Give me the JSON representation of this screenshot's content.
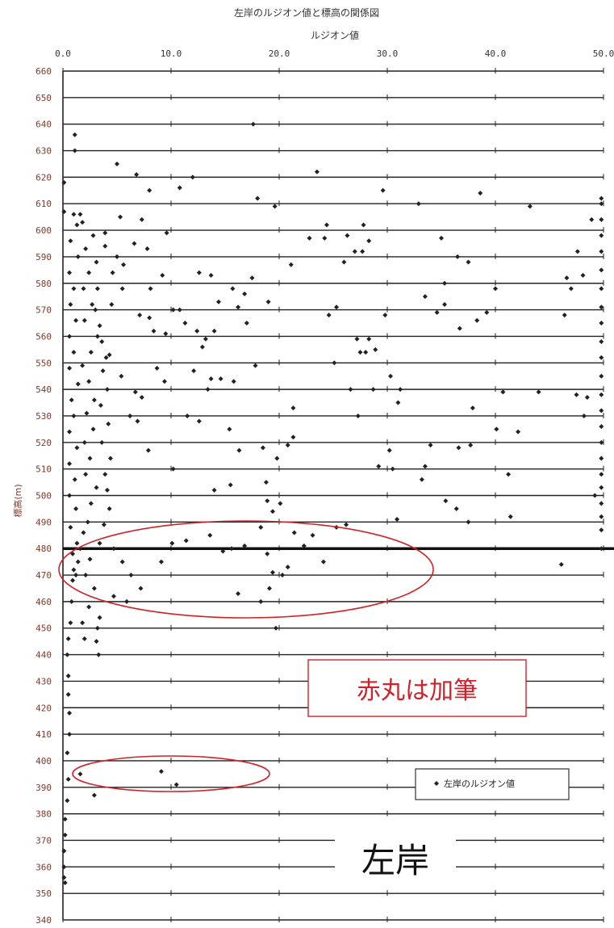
{
  "chart_data": {
    "type": "scatter",
    "title": "左岸のルジオン値と標高の関係図",
    "xlabel": "ルジオン値",
    "ylabel": "標高(m)",
    "xlim": [
      0,
      50
    ],
    "ylim": [
      340,
      660
    ],
    "x_ticks": [
      "0.0",
      "10.0",
      "20.0",
      "30.0",
      "40.0",
      "50.0"
    ],
    "y_ticks": [
      "660",
      "650",
      "640",
      "630",
      "620",
      "610",
      "600",
      "590",
      "580",
      "570",
      "560",
      "550",
      "540",
      "530",
      "520",
      "510",
      "500",
      "490",
      "480",
      "470",
      "460",
      "450",
      "440",
      "430",
      "420",
      "410",
      "400",
      "390",
      "380",
      "370",
      "360",
      "350",
      "340"
    ],
    "x_axis_position": "top",
    "grid": "horizontal",
    "reference_line_elevation": 480,
    "legend": {
      "label": "左岸のルジオン値",
      "placement": "bottom-right"
    },
    "series": [
      {
        "name": "左岸のルジオン値",
        "points": [
          [
            1.1,
            636
          ],
          [
            1.1,
            630
          ],
          [
            5,
            625
          ],
          [
            6.8,
            621
          ],
          [
            12,
            620
          ],
          [
            10.8,
            616
          ],
          [
            8,
            615
          ],
          [
            23.5,
            622
          ],
          [
            17.6,
            640
          ],
          [
            18,
            612
          ],
          [
            19.6,
            609
          ],
          [
            29.6,
            615
          ],
          [
            32.9,
            610
          ],
          [
            38.6,
            614
          ],
          [
            43.2,
            609
          ],
          [
            0.1,
            618
          ],
          [
            0.1,
            607
          ],
          [
            1,
            606
          ],
          [
            1.6,
            606
          ],
          [
            5.3,
            605
          ],
          [
            7.3,
            604
          ],
          [
            3.9,
            599
          ],
          [
            9.6,
            599
          ],
          [
            6.6,
            595
          ],
          [
            7.8,
            593
          ],
          [
            5,
            590
          ],
          [
            5.6,
            587
          ],
          [
            4.6,
            584
          ],
          [
            9.2,
            583
          ],
          [
            12.6,
            584
          ],
          [
            13.7,
            583
          ],
          [
            15.7,
            578
          ],
          [
            16.8,
            576
          ],
          [
            17.5,
            582
          ],
          [
            21.1,
            587
          ],
          [
            22.8,
            597
          ],
          [
            24.2,
            597
          ],
          [
            24.4,
            602
          ],
          [
            26.3,
            598
          ],
          [
            27.8,
            602
          ],
          [
            28.3,
            596
          ],
          [
            26,
            588
          ],
          [
            27,
            592
          ],
          [
            27.7,
            592
          ],
          [
            35,
            597
          ],
          [
            35.3,
            580
          ],
          [
            36.5,
            590
          ],
          [
            37.5,
            588
          ],
          [
            40,
            578
          ],
          [
            46.6,
            582
          ],
          [
            47.6,
            592
          ],
          [
            48.1,
            583
          ],
          [
            48.9,
            604
          ],
          [
            3.2,
            578
          ],
          [
            5.5,
            578
          ],
          [
            8.1,
            578
          ],
          [
            10.8,
            570
          ],
          [
            11.3,
            565
          ],
          [
            12.4,
            562
          ],
          [
            13.2,
            559
          ],
          [
            14.4,
            573
          ],
          [
            14,
            562
          ],
          [
            17,
            565
          ],
          [
            16.2,
            571
          ],
          [
            19,
            573
          ],
          [
            24.6,
            568
          ],
          [
            25.3,
            571
          ],
          [
            27.2,
            559
          ],
          [
            28.3,
            559
          ],
          [
            29.8,
            568
          ],
          [
            33.5,
            575
          ],
          [
            34.6,
            569
          ],
          [
            35.3,
            572
          ],
          [
            36.7,
            563
          ],
          [
            38.3,
            566
          ],
          [
            39.2,
            569
          ],
          [
            46.4,
            568
          ],
          [
            47,
            578
          ],
          [
            3,
            570
          ],
          [
            4.5,
            572
          ],
          [
            7.1,
            568
          ],
          [
            8,
            567
          ],
          [
            8.4,
            562
          ],
          [
            9.5,
            561
          ],
          [
            10.2,
            570
          ],
          [
            12.9,
            556
          ],
          [
            13.4,
            540
          ],
          [
            14.6,
            544
          ],
          [
            15.8,
            543
          ],
          [
            17.8,
            549
          ],
          [
            25.1,
            550
          ],
          [
            27.5,
            554
          ],
          [
            28,
            554
          ],
          [
            28.9,
            555
          ],
          [
            30.3,
            545
          ],
          [
            31,
            535
          ],
          [
            4,
            552
          ],
          [
            5.4,
            545
          ],
          [
            6.7,
            539
          ],
          [
            7.3,
            537
          ],
          [
            8.7,
            548
          ],
          [
            9.4,
            543
          ],
          [
            12.1,
            547
          ],
          [
            13.7,
            544
          ],
          [
            11.5,
            530
          ],
          [
            12.6,
            528
          ],
          [
            15.4,
            525
          ],
          [
            16.3,
            517
          ],
          [
            18.5,
            518
          ],
          [
            19.8,
            514
          ],
          [
            21.3,
            533
          ],
          [
            26.6,
            540
          ],
          [
            27.3,
            530
          ],
          [
            28.7,
            540
          ],
          [
            30.2,
            517
          ],
          [
            31.2,
            540
          ],
          [
            33.2,
            506
          ],
          [
            33.5,
            511
          ],
          [
            34,
            519
          ],
          [
            35.4,
            498
          ],
          [
            36.6,
            518
          ],
          [
            37.9,
            533
          ],
          [
            40.1,
            525
          ],
          [
            41.2,
            508
          ],
          [
            41.4,
            492
          ],
          [
            42.1,
            524
          ],
          [
            40.7,
            539
          ],
          [
            44,
            539
          ],
          [
            47.5,
            538
          ],
          [
            48.2,
            530
          ],
          [
            48.5,
            537
          ],
          [
            49.2,
            500
          ],
          [
            6.2,
            530
          ],
          [
            6.9,
            528
          ],
          [
            7.9,
            517
          ],
          [
            10.2,
            510
          ],
          [
            14,
            502
          ],
          [
            15.5,
            504
          ],
          [
            18.8,
            505
          ],
          [
            18.9,
            498
          ],
          [
            19.4,
            494
          ],
          [
            20.1,
            497
          ],
          [
            20.8,
            519
          ],
          [
            21.3,
            522
          ],
          [
            29.2,
            511
          ],
          [
            30.5,
            510
          ],
          [
            30.9,
            491
          ],
          [
            36.4,
            495
          ],
          [
            37.5,
            490
          ],
          [
            37.7,
            519
          ],
          [
            4.7,
            480
          ],
          [
            5.5,
            475
          ],
          [
            6.3,
            470
          ],
          [
            7.2,
            465
          ],
          [
            9.1,
            475
          ],
          [
            10.1,
            482
          ],
          [
            11.4,
            483
          ],
          [
            13.6,
            485
          ],
          [
            14.8,
            479
          ],
          [
            15.6,
            480
          ],
          [
            16.8,
            481
          ],
          [
            18.3,
            488
          ],
          [
            18.9,
            478
          ],
          [
            19.4,
            471
          ],
          [
            20.3,
            470
          ],
          [
            20.8,
            473
          ],
          [
            22.3,
            481
          ],
          [
            23.1,
            485
          ],
          [
            24.1,
            475
          ],
          [
            25.3,
            488
          ],
          [
            26.2,
            489
          ],
          [
            21.4,
            486
          ],
          [
            16.2,
            463
          ],
          [
            18.3,
            460
          ],
          [
            19.1,
            465
          ],
          [
            19.7,
            450
          ],
          [
            5.9,
            460
          ],
          [
            4.7,
            462
          ],
          [
            3.4,
            454
          ],
          [
            3.2,
            450
          ],
          [
            3.1,
            445
          ],
          [
            3.3,
            440
          ],
          [
            46.1,
            474
          ],
          [
            9.1,
            396
          ],
          [
            10.5,
            391
          ],
          [
            1.6,
            395
          ],
          [
            2.9,
            387
          ],
          [
            0.5,
            393
          ],
          [
            0.4,
            385
          ],
          [
            0.2,
            378
          ],
          [
            0.2,
            372
          ],
          [
            0.1,
            366
          ],
          [
            0.1,
            360
          ],
          [
            0.1,
            356
          ],
          [
            0.2,
            354
          ],
          [
            0.4,
            403
          ],
          [
            0.6,
            410
          ],
          [
            0.6,
            418
          ],
          [
            0.5,
            425
          ],
          [
            0.5,
            432
          ],
          [
            0.4,
            440
          ],
          [
            0.5,
            446
          ],
          [
            0.7,
            452
          ],
          [
            0.8,
            460
          ],
          [
            0.9,
            468
          ],
          [
            1,
            472
          ],
          [
            1.2,
            470
          ],
          [
            1.4,
            475
          ],
          [
            0.9,
            478
          ],
          [
            1.3,
            482
          ],
          [
            0.7,
            488
          ],
          [
            1.2,
            495
          ],
          [
            0.6,
            500
          ],
          [
            1.1,
            506
          ],
          [
            0.6,
            512
          ],
          [
            1.3,
            518
          ],
          [
            0.6,
            524
          ],
          [
            1,
            530
          ],
          [
            0.8,
            536
          ],
          [
            1.4,
            542
          ],
          [
            0.6,
            548
          ],
          [
            1,
            554
          ],
          [
            0.6,
            560
          ],
          [
            1.2,
            566
          ],
          [
            0.7,
            572
          ],
          [
            1,
            578
          ],
          [
            0.6,
            584
          ],
          [
            1.4,
            590
          ],
          [
            0.7,
            596
          ],
          [
            1.3,
            602
          ],
          [
            1.6,
            480
          ],
          [
            1.9,
            486
          ],
          [
            2.3,
            490
          ],
          [
            2.6,
            497
          ],
          [
            3.1,
            503
          ],
          [
            2.1,
            508
          ],
          [
            2.5,
            514
          ],
          [
            2,
            520
          ],
          [
            2.8,
            525
          ],
          [
            2.2,
            531
          ],
          [
            2.9,
            536
          ],
          [
            2.4,
            543
          ],
          [
            1.8,
            549
          ],
          [
            2.6,
            554
          ],
          [
            3.2,
            560
          ],
          [
            2,
            566
          ],
          [
            2.7,
            572
          ],
          [
            1.9,
            578
          ],
          [
            2.4,
            584
          ],
          [
            3.1,
            588
          ],
          [
            2.1,
            593
          ],
          [
            2.8,
            598
          ],
          [
            1.8,
            603
          ],
          [
            2.1,
            470
          ],
          [
            2.5,
            476
          ],
          [
            3.4,
            482
          ],
          [
            2.9,
            465
          ],
          [
            2.4,
            458
          ],
          [
            1.8,
            452
          ],
          [
            2,
            446
          ],
          [
            3.8,
            489
          ],
          [
            4.3,
            495
          ],
          [
            4.1,
            502
          ],
          [
            3.9,
            508
          ],
          [
            4.4,
            514
          ],
          [
            3.6,
            520
          ],
          [
            4.2,
            527
          ],
          [
            3.5,
            534
          ],
          [
            4.1,
            540
          ],
          [
            3.7,
            547
          ],
          [
            4.3,
            553
          ],
          [
            3.6,
            558
          ],
          [
            3.4,
            564
          ],
          [
            3.9,
            594
          ],
          [
            49.8,
            480
          ],
          [
            49.8,
            487
          ],
          [
            49.8,
            492
          ],
          [
            49.8,
            497
          ],
          [
            49.8,
            503
          ],
          [
            49.8,
            508
          ],
          [
            49.8,
            514
          ],
          [
            49.8,
            520
          ],
          [
            49.8,
            526
          ],
          [
            49.8,
            532
          ],
          [
            49.8,
            538
          ],
          [
            49.8,
            545
          ],
          [
            49.8,
            552
          ],
          [
            49.8,
            558
          ],
          [
            49.8,
            565
          ],
          [
            49.8,
            571
          ],
          [
            49.8,
            578
          ],
          [
            49.8,
            585
          ],
          [
            49.8,
            592
          ],
          [
            49.8,
            598
          ],
          [
            49.8,
            604
          ],
          [
            49.8,
            610
          ],
          [
            49.8,
            612
          ]
        ]
      }
    ],
    "annotations": [
      {
        "text": "赤丸は加筆",
        "color": "#d0222a"
      },
      {
        "text": "左岸",
        "color": "#111111"
      }
    ],
    "highlight_color": "#d0222a"
  }
}
